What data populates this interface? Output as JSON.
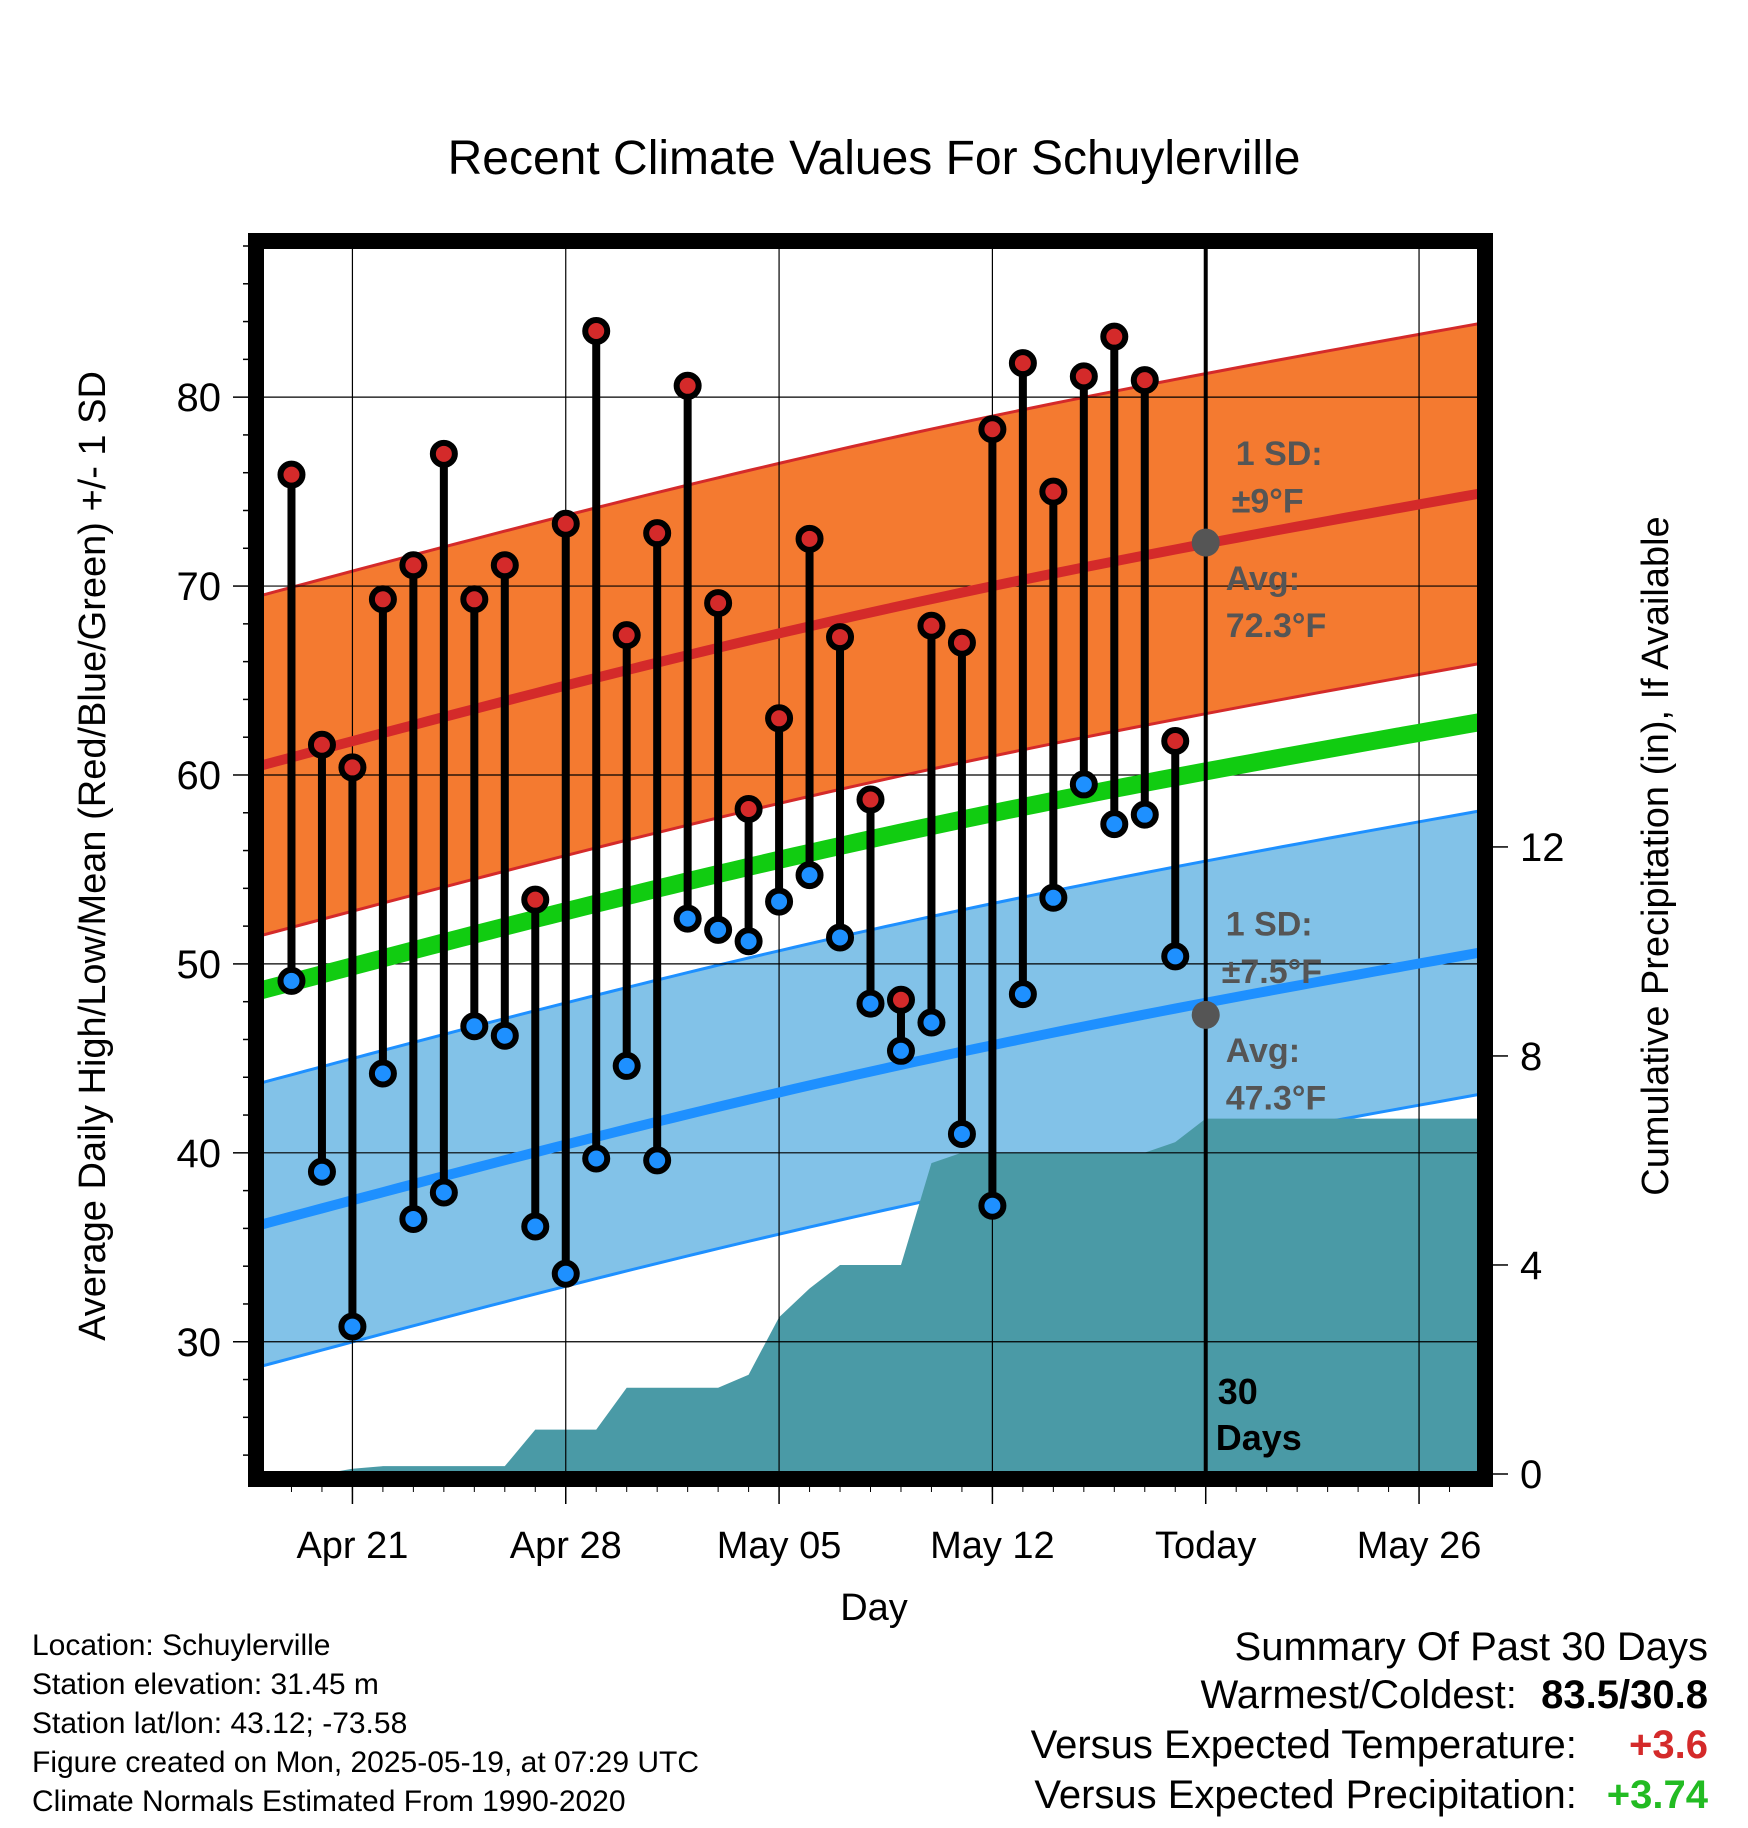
{
  "title": "Recent Climate Values For Schuylerville",
  "colors": {
    "high_band": "#f47a30",
    "high_line": "#d42a2a",
    "low_band": "#82c2e8",
    "low_line": "#1e90ff",
    "mean_line": "#11cc11",
    "precip_fill": "#4a9aa6",
    "high_dot": "#d42a2a",
    "low_dot": "#1e90ff",
    "annotation": "#555555",
    "positive_temp": "#d42a2a",
    "positive_precip": "#22bb22"
  },
  "chart_data": {
    "type": "line",
    "title": "Recent Climate Values For Schuylerville",
    "xlabel": "Day",
    "ylabel": "Average Daily High/Low/Mean (Red/Blue/Green) +/- 1 SD",
    "y2label": "Cumulative Precipitation (in), If Available",
    "x_range": [
      "Apr 18",
      "May 28"
    ],
    "ylim": [
      23,
      88
    ],
    "y2lim": [
      0,
      23.5
    ],
    "x_ticks": [
      "Apr 21",
      "Apr 28",
      "May 05",
      "May 12",
      "Today",
      "May 26"
    ],
    "y_ticks": [
      30,
      40,
      50,
      60,
      70,
      80
    ],
    "y2_ticks": [
      0,
      4,
      8,
      12
    ],
    "grid": true,
    "today_label": "Today",
    "days": [
      "Apr 19",
      "Apr 20",
      "Apr 21",
      "Apr 22",
      "Apr 23",
      "Apr 24",
      "Apr 25",
      "Apr 26",
      "Apr 27",
      "Apr 28",
      "Apr 29",
      "Apr 30",
      "May 01",
      "May 02",
      "May 03",
      "May 04",
      "May 05",
      "May 06",
      "May 07",
      "May 08",
      "May 09",
      "May 10",
      "May 11",
      "May 12",
      "May 13",
      "May 14",
      "May 15",
      "May 16",
      "May 17",
      "May 18"
    ],
    "series": [
      {
        "name": "Daily High",
        "values": [
          75.9,
          61.6,
          60.4,
          69.3,
          71.1,
          77.0,
          69.3,
          71.1,
          53.4,
          73.3,
          83.5,
          67.4,
          72.8,
          80.6,
          69.1,
          58.2,
          63.0,
          72.5,
          67.3,
          58.7,
          48.1,
          67.9,
          67.0,
          78.3,
          81.8,
          75.0,
          81.1,
          83.2,
          80.9,
          61.8
        ]
      },
      {
        "name": "Daily Low",
        "values": [
          49.1,
          39.0,
          30.8,
          44.2,
          36.5,
          37.9,
          46.7,
          46.2,
          36.1,
          33.6,
          39.7,
          44.6,
          39.6,
          52.4,
          51.8,
          51.2,
          53.3,
          54.7,
          51.4,
          47.9,
          45.4,
          46.9,
          41.0,
          37.2,
          48.4,
          53.5,
          59.5,
          57.4,
          57.9,
          50.4
        ]
      },
      {
        "name": "Cumulative Precipitation",
        "days": [
          "Apr 20",
          "Apr 21",
          "Apr 22",
          "Apr 23",
          "Apr 24",
          "Apr 25",
          "Apr 26",
          "Apr 27",
          "Apr 28",
          "Apr 29",
          "Apr 30",
          "May 01",
          "May 02",
          "May 03",
          "May 04",
          "May 05",
          "May 06",
          "May 07",
          "May 08",
          "May 09",
          "May 10",
          "May 11",
          "May 12",
          "May 13",
          "May 14",
          "May 15",
          "May 16",
          "May 17",
          "May 18",
          "May 19",
          "May 28"
        ],
        "values": [
          0.0,
          0.1,
          0.15,
          0.15,
          0.15,
          0.15,
          0.15,
          0.85,
          0.85,
          0.85,
          1.65,
          1.65,
          1.65,
          1.65,
          1.9,
          3.0,
          3.55,
          4.0,
          4.0,
          4.0,
          5.95,
          6.15,
          6.15,
          6.15,
          6.15,
          6.15,
          6.15,
          6.15,
          6.35,
          6.8,
          6.8
        ]
      }
    ],
    "normals": {
      "high_avg": {
        "start": 60.5,
        "end": 74.9
      },
      "high_sd": 9,
      "low_avg": {
        "start": 36.2,
        "end": 50.6
      },
      "low_sd": 7.5,
      "mean_avg": {
        "start": 48.6,
        "end": 62.8
      }
    },
    "annotations": {
      "high_sd_label": "1 SD:",
      "high_sd_value": "±9°F",
      "high_avg_label": "Avg:",
      "high_avg_value": "72.3°F",
      "high_avg_today": 72.3,
      "low_sd_label": "1 SD:",
      "low_sd_value": "±7.5°F",
      "low_avg_label": "Avg:",
      "low_avg_value": "47.3°F",
      "low_avg_today": 47.3,
      "period_line1": "30",
      "period_line2": "Days"
    }
  },
  "footer": {
    "location": "Location: Schuylerville",
    "elevation": "Station elevation: 31.45 m",
    "latlon": "Station lat/lon: 43.12; -73.58",
    "created": "Figure created on Mon, 2025-05-19, at 07:29 UTC",
    "normals": "Climate Normals Estimated From 1990-2020"
  },
  "summary": {
    "heading": "Summary Of Past 30 Days",
    "warmest_label": "Warmest/Coldest:",
    "warmest_value": "83.5/30.8",
    "temp_label": "Versus Expected Temperature:",
    "temp_value": "+3.6",
    "precip_label": "Versus Expected Precipitation:",
    "precip_value": "+3.74"
  }
}
